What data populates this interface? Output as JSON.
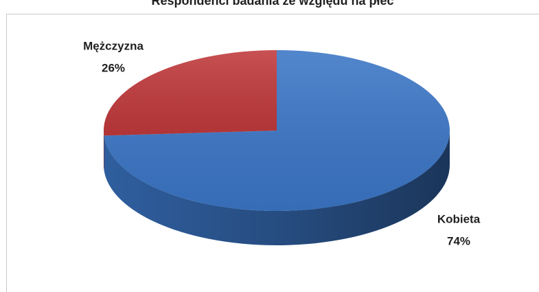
{
  "chart_data": {
    "type": "pie",
    "title": "Respondenci badania ze względu na płeć",
    "categories": [
      "Kobieta",
      "Mężczyzna"
    ],
    "values": [
      74,
      26
    ],
    "value_labels": [
      "74%",
      "26%"
    ],
    "colors": [
      "#3b76c6",
      "#c0393b"
    ]
  }
}
